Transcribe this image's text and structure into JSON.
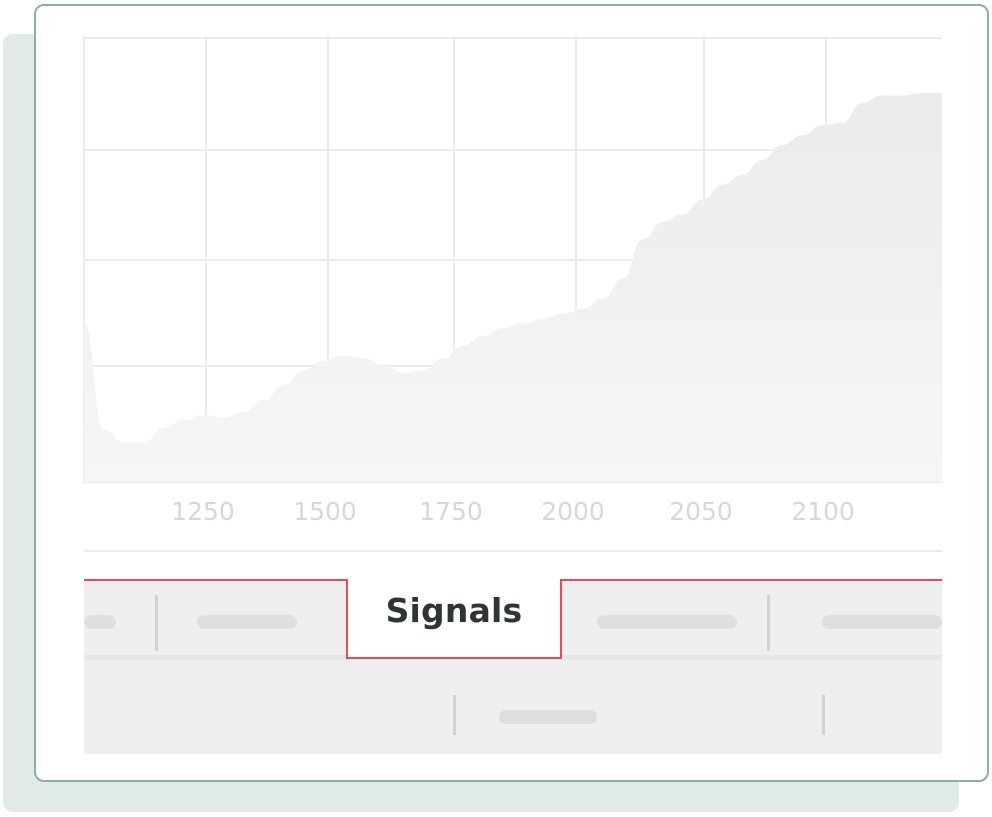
{
  "chart_data": {
    "type": "area",
    "x_tick_labels": [
      "1250",
      "1500",
      "1750",
      "2000",
      "2050",
      "2100"
    ],
    "grid": true,
    "series": [
      {
        "values": [
          0.64,
          0.21,
          0.16,
          0.16,
          0.22,
          0.25,
          0.27,
          0.26,
          0.28,
          0.33,
          0.39,
          0.45,
          0.49,
          0.51,
          0.5,
          0.47,
          0.44,
          0.45,
          0.5,
          0.55,
          0.59,
          0.62,
          0.64,
          0.66,
          0.68,
          0.7,
          0.74,
          0.82,
          0.98,
          1.05,
          1.08,
          1.14,
          1.2,
          1.24,
          1.3,
          1.36,
          1.4,
          1.44,
          1.45,
          1.53,
          1.56,
          1.56,
          1.57,
          1.57
        ]
      }
    ],
    "colors": {
      "area": "#ececec",
      "grid": "#ebebeb",
      "tick_label": "#d7d7d7"
    }
  },
  "tabs": {
    "active_label": "Signals"
  },
  "colors": {
    "border": "#8aaeae",
    "shadow": "#e1e9e9",
    "accent": "#e84a5a"
  }
}
